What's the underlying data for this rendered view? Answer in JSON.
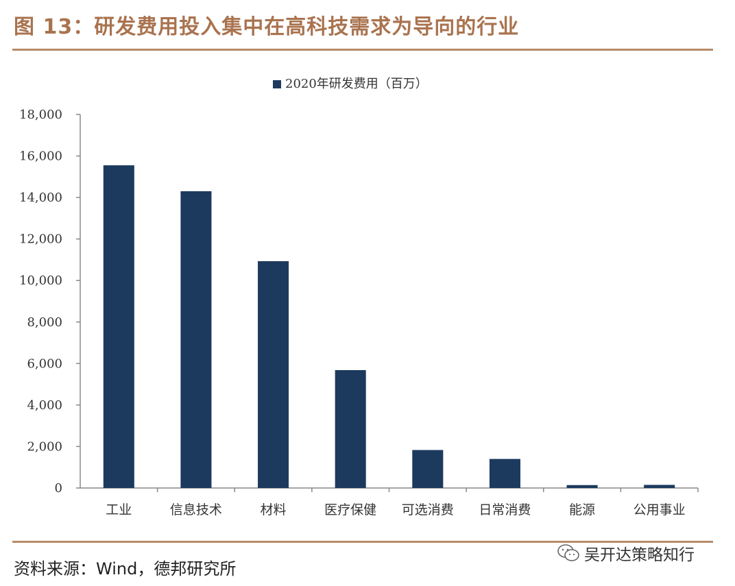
{
  "figure": {
    "title": "图 13：研发费用投入集中在高科技需求为导向的行业",
    "source": "资料来源：Wind，德邦研究所",
    "watermark": "吴开达策略知行"
  },
  "colors": {
    "accent": "#a9734f",
    "bar": "#1c3a5e",
    "rule": "#b88a68"
  },
  "icons": {
    "watermark": "wechat-icon"
  },
  "chart_data": {
    "type": "bar",
    "categories": [
      "工业",
      "信息技术",
      "材料",
      "医疗保健",
      "可选消费",
      "日常消费",
      "能源",
      "公用事业"
    ],
    "series": [
      {
        "name": "2020年研发费用（百万）",
        "values": [
          15550,
          14300,
          10930,
          5680,
          1830,
          1400,
          140,
          150
        ]
      }
    ],
    "ylim": [
      0,
      18000
    ],
    "yticks": [
      0,
      2000,
      4000,
      6000,
      8000,
      10000,
      12000,
      14000,
      16000,
      18000
    ],
    "ytick_labels": [
      "0",
      "2,000",
      "4,000",
      "6,000",
      "8,000",
      "10,000",
      "12,000",
      "14,000",
      "16,000",
      "18,000"
    ],
    "legend_position": "top-center",
    "grid": false
  }
}
